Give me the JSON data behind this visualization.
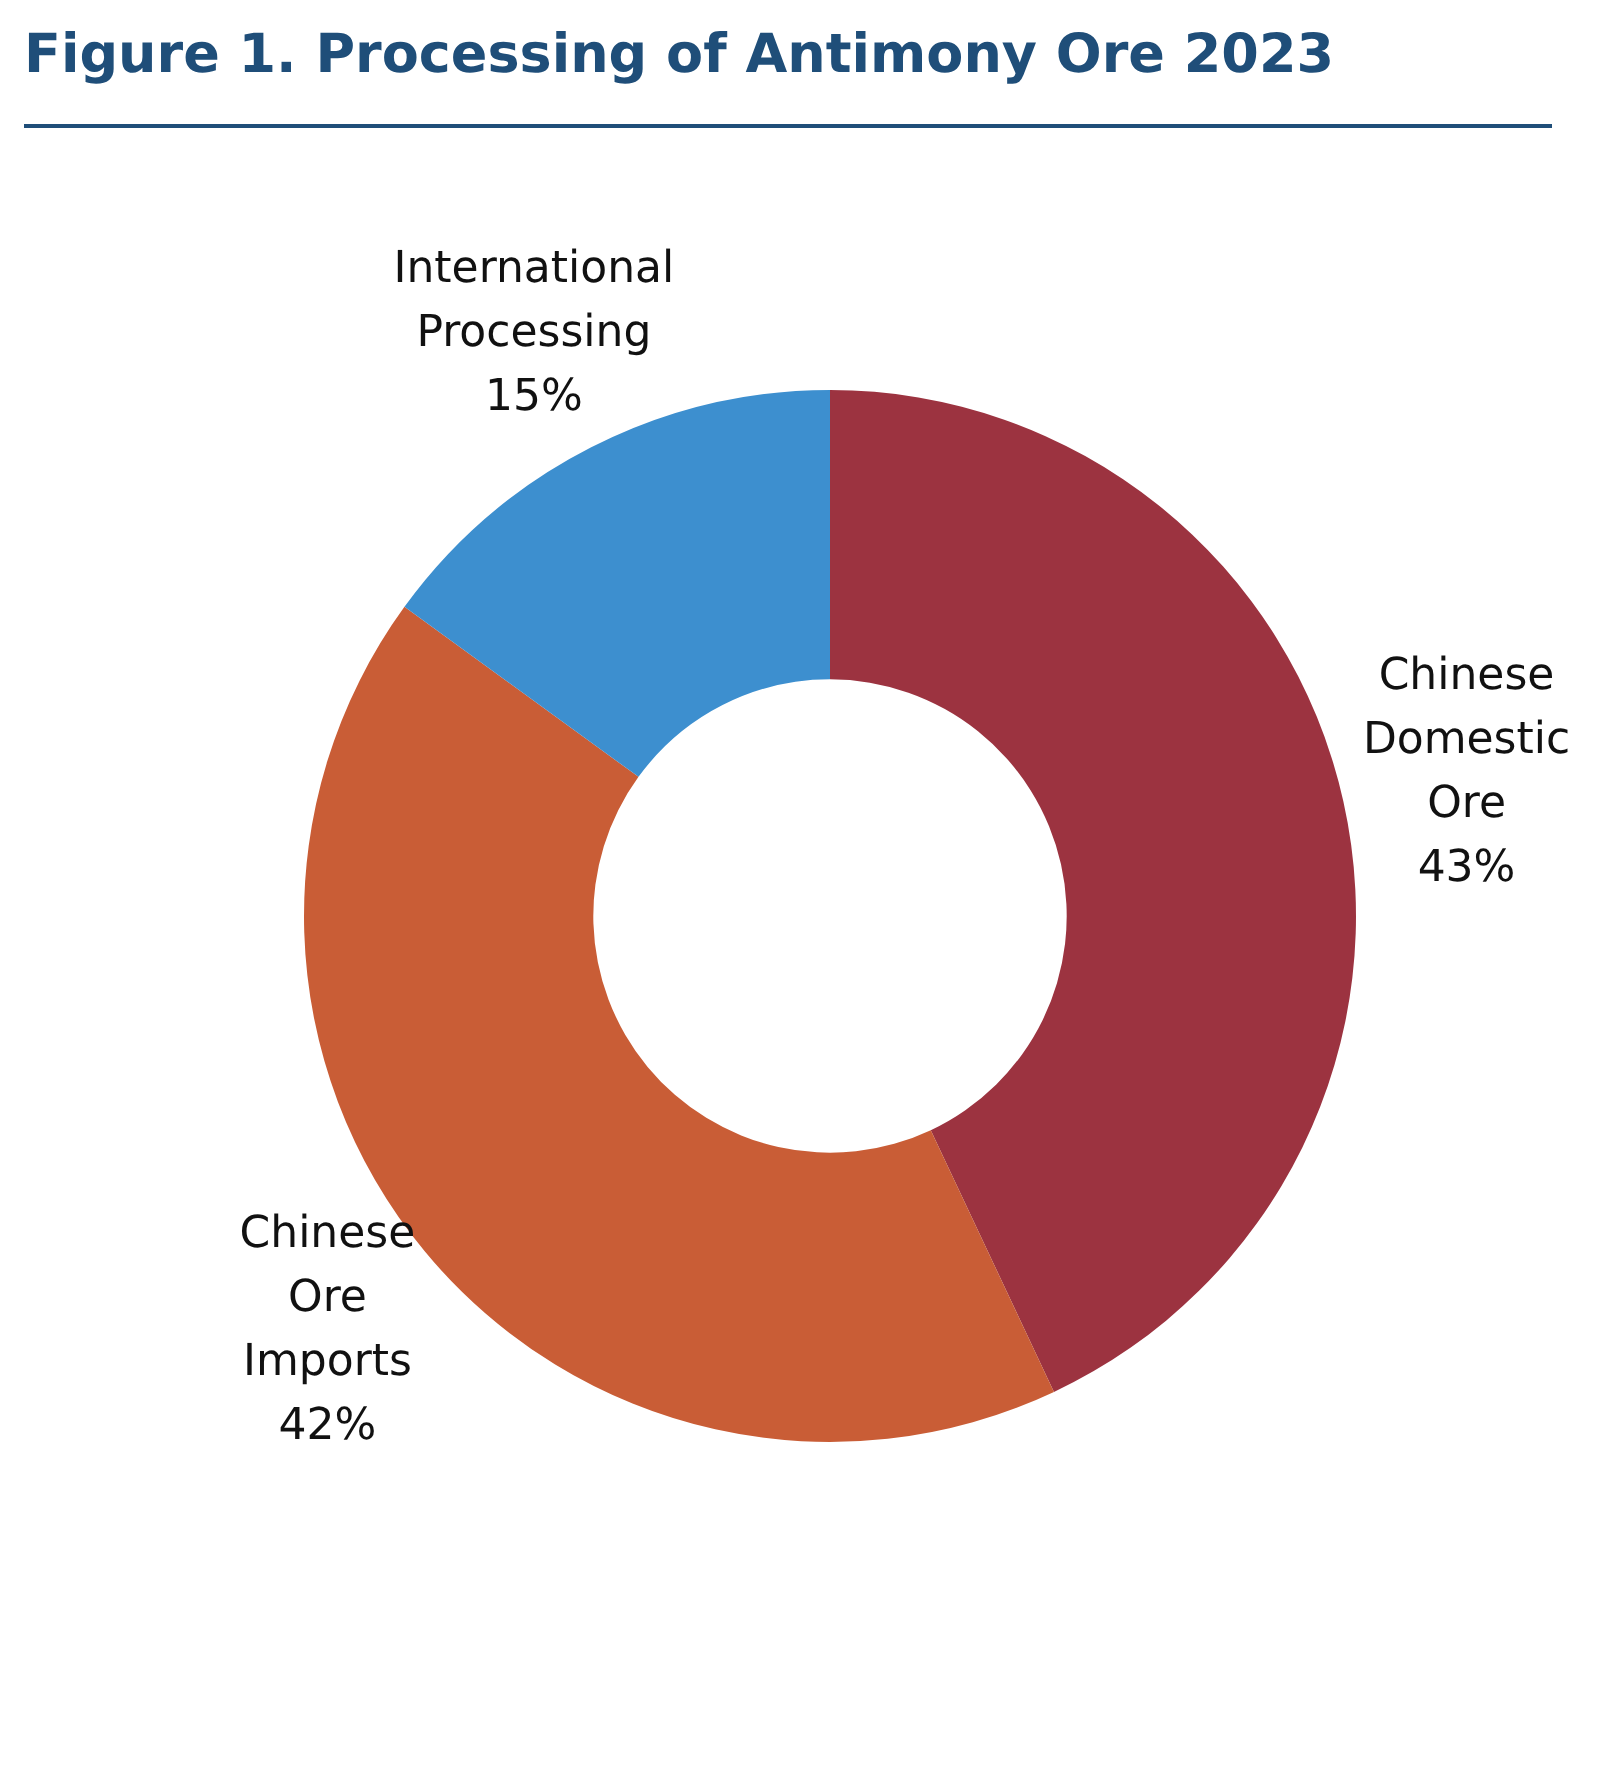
{
  "chart_data": {
    "type": "donut",
    "title": "Figure 1. Processing of Antimony Ore 2023",
    "categories": [
      "Chinese Domestic Ore",
      "Chinese Ore Imports",
      "International Processing"
    ],
    "values": [
      43,
      42,
      15
    ],
    "value_labels": [
      "43%",
      "42%",
      "15%"
    ],
    "colors": [
      "#9c3340",
      "#c95d36",
      "#3d8fcf"
    ],
    "legend": false
  }
}
